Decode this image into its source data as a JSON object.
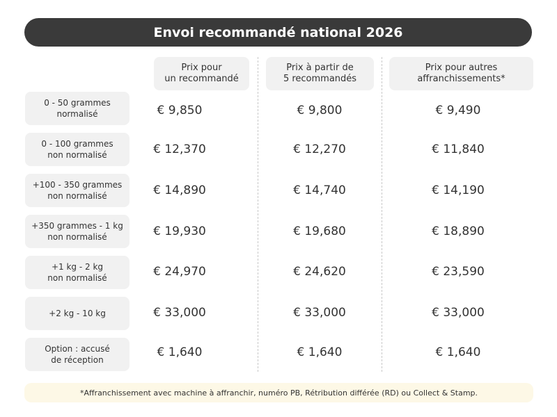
{
  "title": "Envoi recommandé national 2026",
  "columns": [
    {
      "line1": "Prix pour",
      "line2": "un recommandé"
    },
    {
      "line1": "Prix à partir de",
      "line2": "5 recommandés"
    },
    {
      "line1": "Prix pour autres",
      "line2": "affranchissements*"
    }
  ],
  "rows": [
    {
      "label1": "0 - 50 grammes",
      "label2": "normalisé",
      "prices": [
        "€ 9,850",
        "€ 9,800",
        "€ 9,490"
      ]
    },
    {
      "label1": "0 - 100 grammes",
      "label2": "non normalisé",
      "prices": [
        "€ 12,370",
        "€ 12,270",
        "€ 11,840"
      ]
    },
    {
      "label1": "+100 - 350 grammes",
      "label2": "non normalisé",
      "prices": [
        "€ 14,890",
        "€ 14,740",
        "€ 14,190"
      ]
    },
    {
      "label1": "+350 grammes - 1 kg",
      "label2": "non normalisé",
      "prices": [
        "€ 19,930",
        "€ 19,680",
        "€ 18,890"
      ]
    },
    {
      "label1": "+1 kg - 2 kg",
      "label2": "non normalisé",
      "prices": [
        "€ 24,970",
        "€ 24,620",
        "€ 23,590"
      ]
    },
    {
      "label1": "+2 kg - 10 kg",
      "label2": "",
      "prices": [
        "€ 33,000",
        "€ 33,000",
        "€ 33,000"
      ]
    },
    {
      "label1": "Option : accusé",
      "label2": "de réception",
      "prices": [
        "€ 1,640",
        "€ 1,640",
        "€ 1,640"
      ]
    }
  ],
  "footnote": "*Affranchissement avec machine à affranchir, numéro PB, Rétribution différée (RD) ou Collect & Stamp.",
  "colors": {
    "title_background": "#3a3a3a",
    "label_background": "#f1f1f1",
    "footnote_background": "#fdf8e6"
  }
}
